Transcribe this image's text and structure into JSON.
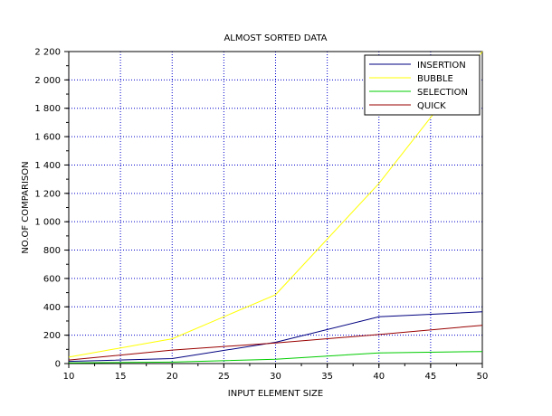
{
  "chart_data": {
    "type": "line",
    "title": "ALMOST SORTED DATA",
    "xlabel": "INPUT ELEMENT SIZE",
    "ylabel": "NO.OF COMPARISON",
    "xlim": [
      10,
      50
    ],
    "ylim": [
      0,
      2200
    ],
    "x_ticks": [
      "10",
      "15",
      "20",
      "25",
      "30",
      "35",
      "40",
      "45",
      "50"
    ],
    "x_tick_values": [
      10,
      15,
      20,
      25,
      30,
      35,
      40,
      45,
      50
    ],
    "y_ticks": [
      "0",
      "200",
      "400",
      "600",
      "800",
      "1 000",
      "1 200",
      "1 400",
      "1 600",
      "1 800",
      "2 000",
      "2 200"
    ],
    "y_tick_values": [
      0,
      200,
      400,
      600,
      800,
      1000,
      1200,
      1400,
      1600,
      1800,
      2000,
      2200
    ],
    "grid": true,
    "legend_position": "top-right",
    "x": [
      10,
      20,
      30,
      40,
      50
    ],
    "series": [
      {
        "name": "INSERTION",
        "color": "#000080",
        "values": [
          15,
          35,
          150,
          330,
          365
        ]
      },
      {
        "name": "BUBBLE",
        "color": "#ffff00",
        "values": [
          45,
          175,
          485,
          1270,
          2205
        ]
      },
      {
        "name": "SELECTION",
        "color": "#00cc00",
        "values": [
          5,
          10,
          30,
          75,
          85
        ]
      },
      {
        "name": "QUICK",
        "color": "#990000",
        "values": [
          25,
          95,
          145,
          205,
          270
        ]
      }
    ]
  }
}
